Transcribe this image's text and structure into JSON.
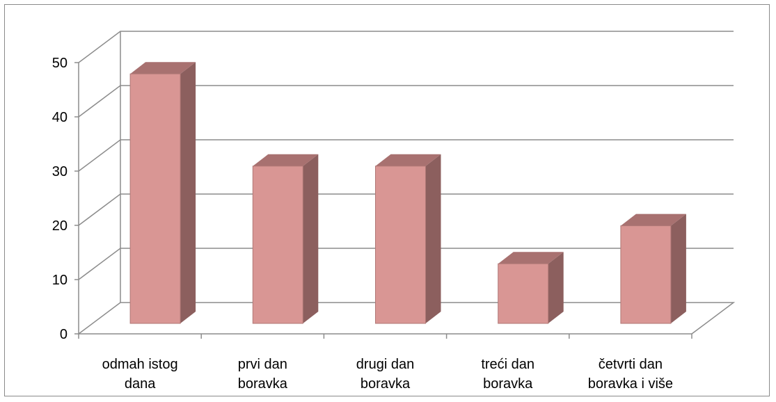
{
  "chart_data": {
    "type": "bar",
    "style": "3d-column",
    "categories": [
      [
        "odmah istog",
        "dana"
      ],
      [
        "prvi dan",
        "boravka"
      ],
      [
        "drugi dan",
        "boravka"
      ],
      [
        "treći dan",
        "boravka"
      ],
      [
        "četvrti dan",
        "boravka i više"
      ]
    ],
    "values": [
      46,
      29,
      29,
      11,
      18
    ],
    "ylim": [
      0,
      50
    ],
    "yticks": [
      "0",
      "10",
      "20",
      "30",
      "40",
      "50"
    ],
    "grid": true,
    "legend": "none",
    "colors": {
      "bar_front": "#d99694",
      "bar_side": "#8c5f5e",
      "bar_top": "#a87170",
      "bar_edge": "#b07876",
      "grid": "#8c8c8c"
    }
  }
}
